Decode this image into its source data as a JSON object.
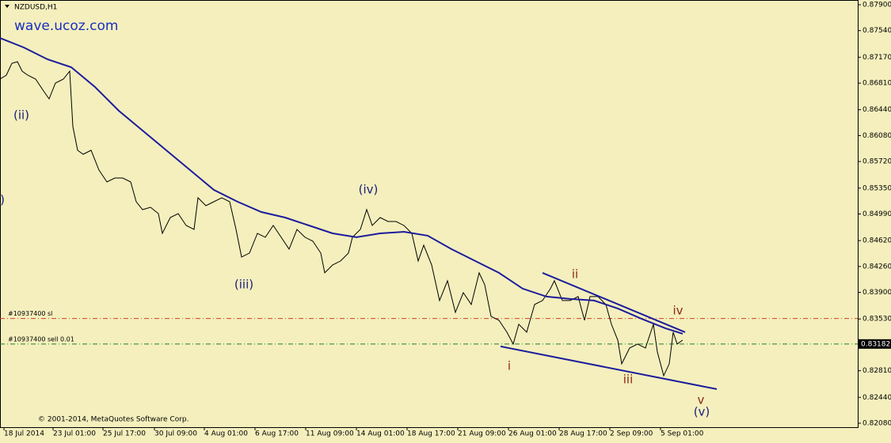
{
  "chart_data": {
    "type": "line",
    "title": "NZDUSD,H1",
    "watermark": "wave.ucoz.com",
    "copyright": "© 2001-2014, MetaQuotes Software Corp.",
    "xlim": [
      0,
      1083
    ],
    "ylim": [
      0.82025,
      0.87966
    ],
    "xticks": [
      {
        "value": 5,
        "label": "18 Jul 2014"
      },
      {
        "value": 67,
        "label": "23 Jul 01:00"
      },
      {
        "value": 130,
        "label": "25 Jul 17:00"
      },
      {
        "value": 195,
        "label": "30 Jul 09:00"
      },
      {
        "value": 258,
        "label": "4 Aug 01:00"
      },
      {
        "value": 322,
        "label": "6 Aug 17:00"
      },
      {
        "value": 386,
        "label": "11 Aug 09:00"
      },
      {
        "value": 450,
        "label": "14 Aug 01:00"
      },
      {
        "value": 514,
        "label": "18 Aug 17:00"
      },
      {
        "value": 578,
        "label": "21 Aug 09:00"
      },
      {
        "value": 642,
        "label": "26 Aug 01:00"
      },
      {
        "value": 706,
        "label": "28 Aug 17:00"
      },
      {
        "value": 770,
        "label": "2 Sep 09:00"
      },
      {
        "value": 834,
        "label": "5 Sep 01:00"
      }
    ],
    "yticks": [
      {
        "value": 0.879,
        "label": "0.87900"
      },
      {
        "value": 0.8754,
        "label": "0.87540"
      },
      {
        "value": 0.8717,
        "label": "0.87170"
      },
      {
        "value": 0.8681,
        "label": "0.86810"
      },
      {
        "value": 0.8644,
        "label": "0.86440"
      },
      {
        "value": 0.8608,
        "label": "0.86080"
      },
      {
        "value": 0.8572,
        "label": "0.85720"
      },
      {
        "value": 0.8535,
        "label": "0.85350"
      },
      {
        "value": 0.8499,
        "label": "0.84990"
      },
      {
        "value": 0.8462,
        "label": "0.84620"
      },
      {
        "value": 0.8426,
        "label": "0.84260"
      },
      {
        "value": 0.839,
        "label": "0.83900"
      },
      {
        "value": 0.8353,
        "label": "0.83530"
      },
      {
        "value": 0.8281,
        "label": "0.82810"
      },
      {
        "value": 0.8244,
        "label": "0.82440"
      },
      {
        "value": 0.8208,
        "label": "0.82080"
      }
    ],
    "current_price": 0.83182,
    "series": [
      {
        "color": "#000000",
        "x": [
          0,
          8,
          15,
          22,
          28,
          35,
          45,
          55,
          62,
          70,
          80,
          88,
          92,
          98,
          105,
          115,
          125,
          135,
          145,
          155,
          165,
          172,
          180,
          190,
          200,
          205,
          215,
          225,
          235,
          245,
          250,
          260,
          270,
          280,
          290,
          298,
          305,
          315,
          325,
          335,
          345,
          355,
          365,
          375,
          385,
          395,
          405,
          410,
          420,
          430,
          440,
          445,
          455,
          463,
          470,
          480,
          490,
          500,
          510,
          520,
          528,
          535,
          545,
          555,
          565,
          575,
          585,
          595,
          605,
          612,
          620,
          630,
          640,
          648,
          655,
          665,
          675,
          685,
          695,
          700,
          710,
          720,
          730,
          738,
          745,
          755,
          765,
          772,
          780,
          785,
          795,
          805,
          815,
          825,
          830,
          838,
          845,
          850,
          855,
          862
        ],
        "values": [
          0.86866,
          0.86921,
          0.87086,
          0.87108,
          0.86976,
          0.86921,
          0.86866,
          0.86701,
          0.86591,
          0.86811,
          0.86866,
          0.86976,
          0.86206,
          0.85876,
          0.85821,
          0.85876,
          0.85601,
          0.85436,
          0.85491,
          0.85491,
          0.85436,
          0.85161,
          0.85051,
          0.85084,
          0.84996,
          0.84721,
          0.84941,
          0.84996,
          0.84831,
          0.84776,
          0.85216,
          0.85106,
          0.85161,
          0.85216,
          0.85161,
          0.84776,
          0.84391,
          0.84446,
          0.84721,
          0.84666,
          0.84831,
          0.84666,
          0.84501,
          0.84776,
          0.84666,
          0.84611,
          0.84446,
          0.84171,
          0.84281,
          0.84336,
          0.84446,
          0.84666,
          0.84776,
          0.85051,
          0.84831,
          0.84941,
          0.84886,
          0.84886,
          0.84831,
          0.84721,
          0.84336,
          0.84556,
          0.84281,
          0.83786,
          0.84061,
          0.83621,
          0.83896,
          0.83731,
          0.84171,
          0.84006,
          0.83566,
          0.83511,
          0.83346,
          0.83181,
          0.83456,
          0.83346,
          0.83731,
          0.83786,
          0.83951,
          0.84061,
          0.83786,
          0.83786,
          0.83841,
          0.83511,
          0.83841,
          0.83841,
          0.83731,
          0.83456,
          0.83236,
          0.82906,
          0.83126,
          0.83181,
          0.83126,
          0.83456,
          0.83071,
          0.82741,
          0.82906,
          0.83346,
          0.83181,
          0.83236
        ]
      },
      {
        "color": "#1c1c9c",
        "x": [
          0,
          30,
          60,
          90,
          120,
          150,
          180,
          210,
          240,
          270,
          300,
          330,
          360,
          390,
          420,
          450,
          480,
          510,
          540,
          570,
          600,
          630,
          660,
          690,
          720,
          750,
          780,
          810,
          840,
          862
        ],
        "values": [
          0.87438,
          0.87306,
          0.87141,
          0.87031,
          0.86756,
          0.86426,
          0.86151,
          0.85876,
          0.85601,
          0.85326,
          0.85161,
          0.85018,
          0.84941,
          0.84831,
          0.84721,
          0.84666,
          0.84721,
          0.84743,
          0.84688,
          0.84501,
          0.84336,
          0.84171,
          0.83951,
          0.83841,
          0.83808,
          0.83786,
          0.83676,
          0.83533,
          0.83401,
          0.83324
        ]
      }
    ],
    "trendlines": [
      {
        "color": "#1c1c9c",
        "x": [
          685,
          865
        ],
        "values": [
          0.84171,
          0.83346
        ]
      },
      {
        "color": "#1c1c9c",
        "x": [
          632,
          905
        ],
        "values": [
          0.83148,
          0.82554
        ]
      }
    ],
    "orders": [
      {
        "label": "#10937400 sl",
        "value": 0.83536,
        "color": "#d04020"
      },
      {
        "label": "#10937400 sell 0.01",
        "value": 0.83181,
        "color": "#208020"
      }
    ],
    "annotations": [
      {
        "text": "(ii)",
        "x": 27,
        "y": 0.86361,
        "color": "#1c1c7c"
      },
      {
        "text": ")",
        "x": 3,
        "y": 0.85184,
        "color": "#1c1c7c"
      },
      {
        "text": "(iii)",
        "x": 308,
        "y": 0.84006,
        "color": "#1c1c7c"
      },
      {
        "text": "(iv)",
        "x": 465,
        "y": 0.85326,
        "color": "#1c1c7c"
      },
      {
        "text": "i",
        "x": 643,
        "y": 0.82873,
        "color": "#8b2a10"
      },
      {
        "text": "ii",
        "x": 726,
        "y": 0.84149,
        "color": "#8b2a10"
      },
      {
        "text": "iii",
        "x": 793,
        "y": 0.82686,
        "color": "#8b2a10"
      },
      {
        "text": "iv",
        "x": 856,
        "y": 0.83643,
        "color": "#8b2a10"
      },
      {
        "text": "v",
        "x": 885,
        "y": 0.824,
        "color": "#8b2a10"
      },
      {
        "text": "(v)",
        "x": 886,
        "y": 0.82235,
        "color": "#1c1c7c"
      }
    ]
  }
}
